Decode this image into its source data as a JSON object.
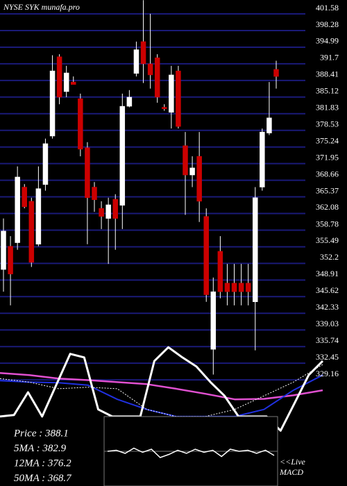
{
  "chart_data": {
    "type": "candlestick",
    "title": "NYSE SYK munafa.pro",
    "ylim": [
      307.05,
      403.23
    ],
    "yticks": [
      401.58,
      398.28,
      394.99,
      391.7,
      388.41,
      385.12,
      381.83,
      378.53,
      375.24,
      371.95,
      368.66,
      365.37,
      362.08,
      358.78,
      355.49,
      352.2,
      348.91,
      345.62,
      342.33,
      339.03,
      335.74,
      332.45,
      329.16
    ],
    "grid": true,
    "grid_color": "#1a1a78",
    "up_color": "#ffffff",
    "down_color": "#cc0000",
    "open": [
      349.9,
      354.5,
      355.2,
      366.2,
      363.4,
      354.9,
      366.7,
      376.3,
      392.0,
      385.1,
      387.0,
      383.7,
      374.0,
      366.2,
      362.0,
      360.0,
      363.8,
      362.6,
      382.2,
      388.7,
      395.0,
      390.6,
      391.8,
      382.0,
      381.0,
      389.2,
      374.4,
      368.6,
      372.3,
      360.4,
      334.1,
      353.5,
      347.2,
      347.2,
      347.2,
      347.2,
      343.5,
      366.2,
      376.9,
      389.5
    ],
    "high": [
      360.0,
      356.5,
      370.3,
      366.8,
      364.1,
      370.3,
      375.8,
      392.3,
      392.5,
      390.2,
      388.1,
      384.7,
      375.1,
      367.2,
      363.4,
      364.1,
      364.8,
      384.7,
      385.4,
      395.0,
      403.2,
      400.5,
      392.5,
      382.6,
      390.2,
      390.2,
      377.1,
      372.3,
      377.1,
      362.0,
      348.3,
      356.5,
      351.0,
      351.0,
      351.0,
      351.0,
      366.2,
      377.8,
      387.0,
      391.2
    ],
    "low": [
      345.5,
      342.8,
      353.8,
      362.0,
      350.4,
      354.5,
      365.5,
      375.8,
      382.6,
      384.0,
      386.5,
      372.3,
      354.9,
      361.3,
      357.9,
      351.0,
      353.8,
      357.9,
      382.0,
      388.1,
      386.8,
      385.7,
      382.9,
      381.3,
      377.8,
      377.8,
      360.7,
      366.2,
      359.3,
      343.5,
      329.1,
      344.2,
      342.8,
      342.8,
      342.8,
      342.8,
      333.9,
      365.5,
      376.5,
      385.7
    ],
    "close": [
      357.5,
      349.0,
      368.2,
      362.3,
      351.3,
      365.9,
      374.8,
      389.2,
      384.0,
      388.8,
      386.5,
      373.7,
      364.1,
      363.7,
      360.4,
      362.7,
      360.0,
      382.2,
      384.0,
      393.4,
      390.6,
      388.4,
      384.0,
      381.7,
      388.4,
      378.2,
      368.6,
      370.0,
      363.4,
      344.9,
      345.5,
      345.5,
      345.5,
      345.5,
      345.5,
      345.5,
      364.1,
      377.1,
      379.9,
      388.1
    ],
    "series": [
      {
        "color": "#e050d0",
        "width": 2.5,
        "values": [
          329.4,
          329.0,
          328.3,
          328.0,
          327.6,
          327.2,
          326.3,
          325.3,
          324.2,
          324.3,
          325.0,
          326.0
        ]
      },
      {
        "color": "#2030e0",
        "width": 2,
        "values": [
          327.9,
          327.6,
          327.5,
          327.0,
          324.2,
          322.2,
          320.8,
          320.8,
          320.8,
          322.2,
          326.0,
          329.0
        ]
      },
      {
        "color": "#ffffff",
        "width": 1,
        "dash": "2 2",
        "values": [
          328.3,
          327.6,
          326.3,
          326.6,
          326.3,
          322.2,
          320.8,
          320.8,
          322.2,
          324.9,
          327.6,
          331.1
        ]
      },
      {
        "color": "#ffffff",
        "width": 3,
        "values": [
          320.8,
          321.1,
          325.6,
          320.8,
          327.0,
          333.2,
          332.5,
          322.2,
          320.8,
          320.8,
          320.8,
          331.8,
          334.5,
          332.5,
          330.7,
          327.6,
          324.9,
          320.8,
          320.8,
          320.8,
          318.0,
          323.5,
          329.0,
          331.8
        ]
      }
    ],
    "legend": [
      "Price  : 388.1",
      "5MA  : 382.9",
      "12MA : 376.2",
      "50MA : 368.7"
    ],
    "macd": {
      "label": [
        "<<Live",
        "MACD"
      ],
      "ylim": [
        -1,
        1
      ],
      "color": "#ffffff",
      "values": [
        0,
        0.1,
        -0.2,
        0.3,
        -0.1,
        0.2,
        -0.6,
        -0.3,
        0.1,
        -0.2,
        0.2,
        -0.1,
        0.1,
        -0.5,
        0.2,
        0,
        0.1,
        -0.2,
        0.1,
        -0.4
      ]
    }
  }
}
